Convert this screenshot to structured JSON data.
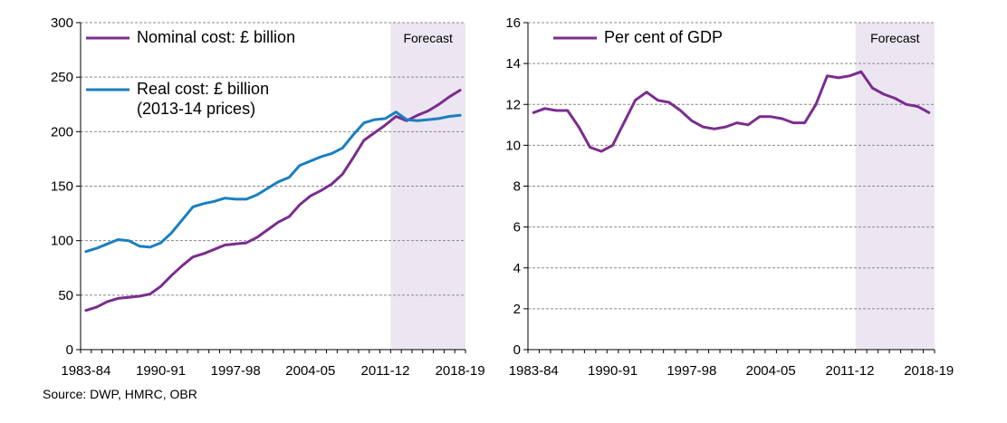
{
  "source": "Source: DWP, HMRC, OBR",
  "chart_data": [
    {
      "type": "line",
      "title": "",
      "xlabel": "",
      "ylabel": "",
      "ylim": [
        0,
        300
      ],
      "yticks": [
        0,
        50,
        100,
        150,
        200,
        250,
        300
      ],
      "grid": true,
      "legend_position": "top-left",
      "forecast_label": "Forecast",
      "forecast_from": "2012-13",
      "x": [
        "1983-84",
        "1984-85",
        "1985-86",
        "1986-87",
        "1987-88",
        "1988-89",
        "1989-90",
        "1990-91",
        "1991-92",
        "1992-93",
        "1993-94",
        "1994-95",
        "1995-96",
        "1996-97",
        "1997-98",
        "1998-99",
        "1999-00",
        "2000-01",
        "2001-02",
        "2002-03",
        "2003-04",
        "2004-05",
        "2005-06",
        "2006-07",
        "2007-08",
        "2008-09",
        "2009-10",
        "2010-11",
        "2011-12",
        "2012-13",
        "2013-14",
        "2014-15",
        "2015-16",
        "2016-17",
        "2017-18",
        "2018-19"
      ],
      "xtick_labels": [
        "1983-84",
        "1990-91",
        "1997-98",
        "2004-05",
        "2011-12",
        "2018-19"
      ],
      "series": [
        {
          "name": "Nominal cost: £ billion",
          "color": "#7b2d8e",
          "values": [
            36,
            39,
            44,
            47,
            48,
            49,
            51,
            58,
            68,
            77,
            85,
            88,
            92,
            96,
            97,
            98,
            103,
            110,
            117,
            122,
            133,
            141,
            146,
            152,
            161,
            176,
            192,
            199,
            206,
            214,
            210,
            215,
            219,
            225,
            232,
            238
          ]
        },
        {
          "name": "Real cost: £ billion (2013-14 prices)",
          "name_lines": [
            "Real cost: £ billion",
            "(2013-14 prices)"
          ],
          "color": "#1a7fc0",
          "values": [
            90,
            93,
            97,
            101,
            100,
            95,
            94,
            98,
            107,
            119,
            131,
            134,
            136,
            139,
            138,
            138,
            142,
            148,
            154,
            158,
            169,
            173,
            177,
            180,
            185,
            197,
            208,
            211,
            212,
            218,
            211,
            210,
            211,
            212,
            214,
            215
          ]
        }
      ]
    },
    {
      "type": "line",
      "title": "",
      "xlabel": "",
      "ylabel": "",
      "ylim": [
        0,
        16
      ],
      "yticks": [
        0,
        2,
        4,
        6,
        8,
        10,
        12,
        14,
        16
      ],
      "grid": true,
      "legend_position": "top-left",
      "forecast_label": "Forecast",
      "forecast_from": "2012-13",
      "x": [
        "1983-84",
        "1984-85",
        "1985-86",
        "1986-87",
        "1987-88",
        "1988-89",
        "1989-90",
        "1990-91",
        "1991-92",
        "1992-93",
        "1993-94",
        "1994-95",
        "1995-96",
        "1996-97",
        "1997-98",
        "1998-99",
        "1999-00",
        "2000-01",
        "2001-02",
        "2002-03",
        "2003-04",
        "2004-05",
        "2005-06",
        "2006-07",
        "2007-08",
        "2008-09",
        "2009-10",
        "2010-11",
        "2011-12",
        "2012-13",
        "2013-14",
        "2014-15",
        "2015-16",
        "2016-17",
        "2017-18",
        "2018-19"
      ],
      "xtick_labels": [
        "1983-84",
        "1990-91",
        "1997-98",
        "2004-05",
        "2011-12",
        "2018-19"
      ],
      "series": [
        {
          "name": "Per cent of GDP",
          "color": "#7b2d8e",
          "values": [
            11.6,
            11.8,
            11.7,
            11.7,
            10.9,
            9.9,
            9.7,
            10.0,
            11.1,
            12.2,
            12.6,
            12.2,
            12.1,
            11.7,
            11.2,
            10.9,
            10.8,
            10.9,
            11.1,
            11.0,
            11.4,
            11.4,
            11.3,
            11.1,
            11.1,
            12.0,
            13.4,
            13.3,
            13.4,
            13.6,
            12.8,
            12.5,
            12.3,
            12.0,
            11.9,
            11.6
          ]
        }
      ]
    }
  ]
}
